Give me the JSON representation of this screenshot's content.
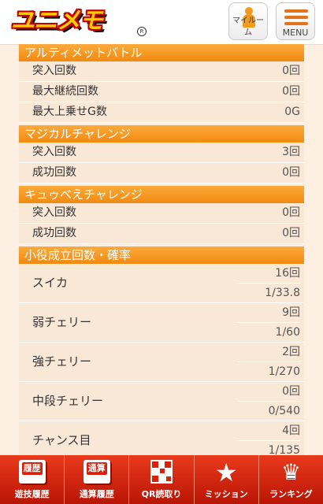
{
  "header": {
    "logo": "ユニメモ",
    "logo_reg": "R",
    "myroom_label": "マイルーム",
    "menu_label": "MENU"
  },
  "sections": {
    "ultimate": {
      "title": "アルティメットバトル",
      "rows": [
        {
          "label": "突入回数",
          "value": "0回"
        },
        {
          "label": "最大継続回数",
          "value": "0回"
        },
        {
          "label": "最大上乗せG数",
          "value": "0G"
        }
      ]
    },
    "magical": {
      "title": "マジカルチャレンジ",
      "rows": [
        {
          "label": "突入回数",
          "value": "3回"
        },
        {
          "label": "成功回数",
          "value": "0回"
        }
      ]
    },
    "kyubey": {
      "title": "キュゥべえチャレンジ",
      "rows": [
        {
          "label": "突入回数",
          "value": "0回"
        },
        {
          "label": "成功回数",
          "value": "0回"
        }
      ]
    },
    "koyaku": {
      "title": "小役成立回数・確率",
      "rows": [
        {
          "label": "スイカ",
          "count": "16回",
          "rate": "1/33.8"
        },
        {
          "label": "弱チェリー",
          "count": "9回",
          "rate": "1/60"
        },
        {
          "label": "強チェリー",
          "count": "2回",
          "rate": "1/270"
        },
        {
          "label": "中段チェリー",
          "count": "0回",
          "rate": "0/540"
        },
        {
          "label": "チャンス目",
          "count": "4回",
          "rate": "1/135"
        }
      ]
    }
  },
  "bottom_nav": {
    "items": [
      {
        "label": "遊技履歴",
        "icon_text": "履歴"
      },
      {
        "label": "通算履歴",
        "icon_text": "通算"
      },
      {
        "label": "QR読取り",
        "icon_text": ""
      },
      {
        "label": "ミッション",
        "icon_text": "★"
      },
      {
        "label": "ランキング",
        "icon_text": "♛"
      }
    ]
  },
  "colors": {
    "section_header": "#f28a10",
    "row_background": "#fae8d7",
    "page_background": "#fdf0e2",
    "nav_background": "#d8210b"
  }
}
